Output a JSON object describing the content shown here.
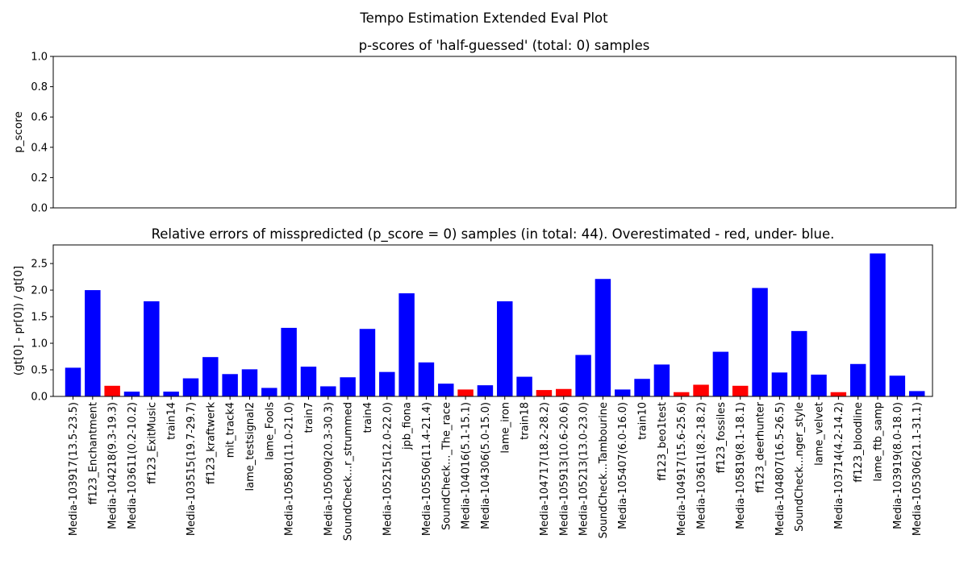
{
  "figure_title": "Tempo Estimation Extended Eval Plot",
  "colors": {
    "over": "#ff0000",
    "under": "#0000ff",
    "axis": "#000000"
  },
  "chart_data": [
    {
      "type": "bar",
      "title": "p-scores of 'half-guessed' (total: 0) samples",
      "xlabel": "",
      "ylabel": "p_score",
      "ylim": [
        0,
        1
      ],
      "yticks": [
        "0.0",
        "0.2",
        "0.4",
        "0.6",
        "0.8",
        "1.0"
      ],
      "categories": [],
      "values": []
    },
    {
      "type": "bar",
      "title": "Relative errors of misspredicted (p_score = 0) samples (in total: 44). Overestimated - red, under- blue.",
      "xlabel": "",
      "ylabel": "(gt[0] - pr[0]) / gt[0]",
      "ylim": [
        0,
        2.85
      ],
      "yticks": [
        "0.0",
        "0.5",
        "1.0",
        "1.5",
        "2.0",
        "2.5"
      ],
      "categories": [
        "Media-103917(13.5-23.5)",
        "ff123_Enchantment",
        "Media-104218(9.3-19.3)",
        "Media-103611(0.2-10.2)",
        "ff123_ExitMusic",
        "train14",
        "Media-103515(19.7-29.7)",
        "ff123_kraftwerk",
        "mit_track4",
        "lame_testsignal2",
        "lame_Fools",
        "Media-105801(11.0-21.0)",
        "train7",
        "Media-105009(20.3-30.3)",
        "SoundCheck...r_strummed",
        "train4",
        "Media-105215(12.0-22.0)",
        "jpb_fiona",
        "Media-105506(11.4-21.4)",
        "SoundCheck..._The_race",
        "Media-104016(5.1-15.1)",
        "Media-104306(5.0-15.0)",
        "lame_iron",
        "train18",
        "Media-104717(18.2-28.2)",
        "Media-105913(10.6-20.6)",
        "Media-105213(13.0-23.0)",
        "SoundCheck...Tambourine",
        "Media-105407(6.0-16.0)",
        "train10",
        "ff123_beo1test",
        "Media-104917(15.6-25.6)",
        "Media-103611(8.2-18.2)",
        "ff123_fossiles",
        "Media-105819(8.1-18.1)",
        "ff123_deerhunter",
        "Media-104807(16.5-26.5)",
        "SoundCheck...nger_style",
        "lame_velvet",
        "Media-103714(4.2-14.2)",
        "ff123_bloodline",
        "lame_ftb_samp",
        "Media-103919(8.0-18.0)",
        "Media-105306(21.1-31.1)"
      ],
      "values": [
        0.54,
        2.0,
        0.2,
        0.09,
        1.79,
        0.09,
        0.34,
        0.74,
        0.42,
        0.51,
        0.16,
        1.29,
        0.56,
        0.19,
        0.36,
        1.27,
        0.46,
        1.94,
        0.64,
        0.24,
        0.13,
        0.21,
        1.79,
        0.37,
        0.12,
        0.14,
        0.78,
        2.21,
        0.13,
        0.33,
        0.6,
        0.08,
        0.22,
        0.84,
        0.2,
        2.04,
        0.45,
        1.23,
        0.41,
        0.08,
        0.61,
        2.69,
        0.39,
        0.1
      ],
      "overestimated": [
        false,
        false,
        true,
        false,
        false,
        false,
        false,
        false,
        false,
        false,
        false,
        false,
        false,
        false,
        false,
        false,
        false,
        false,
        false,
        false,
        true,
        false,
        false,
        false,
        true,
        true,
        false,
        false,
        false,
        false,
        false,
        true,
        true,
        false,
        true,
        false,
        false,
        false,
        false,
        true,
        false,
        false,
        false,
        false
      ]
    }
  ]
}
